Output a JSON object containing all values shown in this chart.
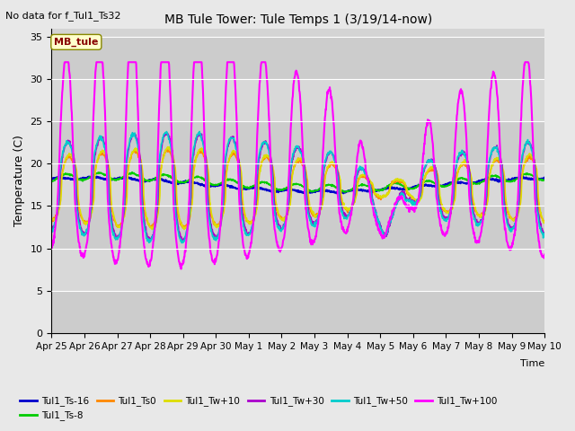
{
  "title": "MB Tule Tower: Tule Temps 1 (3/19/14-now)",
  "top_left_text": "No data for f_Tul1_Ts32",
  "ylabel": "Temperature (C)",
  "xlabel": "Time",
  "ylim": [
    0,
    36
  ],
  "yticks": [
    0,
    5,
    10,
    15,
    20,
    25,
    30,
    35
  ],
  "fig_bg": "#e8e8e8",
  "plot_bg": "#d4d4d4",
  "legend_box_label": "MB_tule",
  "legend_box_facecolor": "#ffffcc",
  "legend_box_edgecolor": "#888800",
  "legend_box_text_color": "#880000",
  "series": [
    {
      "label": "Tul1_Ts-16",
      "color": "#0000cc",
      "lw": 1.5
    },
    {
      "label": "Tul1_Ts-8",
      "color": "#00cc00",
      "lw": 1.2
    },
    {
      "label": "Tul1_Ts0",
      "color": "#ff8800",
      "lw": 1.2
    },
    {
      "label": "Tul1_Tw+10",
      "color": "#dddd00",
      "lw": 1.2
    },
    {
      "label": "Tul1_Tw+30",
      "color": "#aa00cc",
      "lw": 1.2
    },
    {
      "label": "Tul1_Tw+50",
      "color": "#00cccc",
      "lw": 1.2
    },
    {
      "label": "Tul1_Tw+100",
      "color": "#ff00ff",
      "lw": 1.5
    }
  ],
  "tick_labels": [
    "Apr 25",
    "Apr 26",
    "Apr 27",
    "Apr 28",
    "Apr 29",
    "Apr 30",
    "May 1",
    "May 2",
    "May 3",
    "May 4",
    "May 5",
    "May 6",
    "May 7",
    "May 8",
    "May 9",
    "May 10"
  ]
}
